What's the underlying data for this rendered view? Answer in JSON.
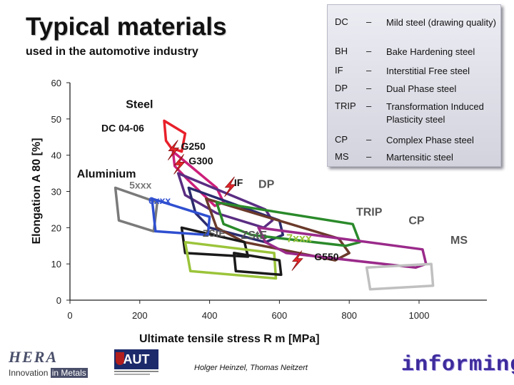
{
  "header": {
    "title": "Typical materials",
    "subtitle": "used in the automotive industry"
  },
  "legend": {
    "entries": [
      {
        "abbr": "DC",
        "dash": "–",
        "desc": "Mild steel (drawing quality)"
      },
      {
        "abbr": "BH",
        "dash": "–",
        "desc": "Bake Hardening steel"
      },
      {
        "abbr": "IF",
        "dash": "–",
        "desc": "Interstitial Free steel"
      },
      {
        "abbr": "DP",
        "dash": "–",
        "desc": "Dual Phase steel"
      },
      {
        "abbr": "TRIP",
        "dash": "–",
        "desc": "Transformation Induced Plasticity steel"
      },
      {
        "abbr": "CP",
        "dash": "–",
        "desc": "Complex Phase steel"
      },
      {
        "abbr": "MS",
        "dash": "–",
        "desc": "Martensitic steel"
      }
    ]
  },
  "chart_data": {
    "type": "scatter",
    "xlabel": "Ultimate tensile stress R m [MPa]",
    "ylabel": "Elongation A 80 [%]",
    "xlim": [
      0,
      1000
    ],
    "ylim": [
      0,
      60
    ],
    "xticks": [
      0,
      200,
      400,
      600,
      800,
      1000
    ],
    "yticks": [
      0,
      10,
      20,
      30,
      40,
      50,
      60
    ],
    "grid": false,
    "group_labels": [
      "Steel",
      "Aluminium"
    ],
    "regions": [
      {
        "name": "DC 04-06",
        "color": "#e8202a",
        "corners": [
          [
            270,
            49.5
          ],
          [
            330,
            46
          ],
          [
            320,
            41
          ],
          [
            290,
            42
          ],
          [
            275,
            44
          ]
        ]
      },
      {
        "name": "G250",
        "color": "#cc1f7a",
        "corners": [
          [
            295,
            41
          ],
          [
            420,
            31
          ],
          [
            440,
            27
          ],
          [
            415,
            26
          ],
          [
            340,
            33
          ],
          [
            300,
            37
          ]
        ]
      },
      {
        "name": "G300",
        "color": "#5a2d82",
        "corners": [
          [
            310,
            35
          ],
          [
            560,
            25
          ],
          [
            580,
            22
          ],
          [
            555,
            20
          ],
          [
            420,
            24
          ],
          [
            330,
            29
          ]
        ]
      },
      {
        "name": "IF",
        "color": "#2b2b6e",
        "corners": [
          [
            340,
            31
          ],
          [
            600,
            22
          ],
          [
            610,
            18
          ],
          [
            560,
            16
          ],
          [
            400,
            20
          ],
          [
            360,
            24
          ]
        ]
      },
      {
        "name": "DP",
        "color": "#6b3a2a",
        "corners": [
          [
            390,
            28
          ],
          [
            770,
            17
          ],
          [
            800,
            13
          ],
          [
            760,
            11
          ],
          [
            500,
            16
          ],
          [
            420,
            20
          ]
        ]
      },
      {
        "name": "TRIP",
        "color": "#2a8a2a",
        "corners": [
          [
            420,
            27
          ],
          [
            810,
            21
          ],
          [
            830,
            16
          ],
          [
            790,
            15
          ],
          [
            520,
            18
          ],
          [
            440,
            21
          ]
        ]
      },
      {
        "name": "CP",
        "color": "#9a2a8a",
        "corners": [
          [
            540,
            20
          ],
          [
            1010,
            14
          ],
          [
            1020,
            10
          ],
          [
            990,
            9
          ],
          [
            620,
            13
          ],
          [
            560,
            16
          ]
        ]
      },
      {
        "name": "MS",
        "color": "#c0c0c0",
        "corners": [
          [
            850,
            9
          ],
          [
            1035,
            10
          ],
          [
            1040,
            4
          ],
          [
            860,
            3
          ]
        ]
      },
      {
        "name": "ZStE",
        "color": "#1a1a1a",
        "corners": [
          [
            320,
            20
          ],
          [
            500,
            16
          ],
          [
            510,
            12
          ],
          [
            330,
            13
          ]
        ]
      },
      {
        "name": "5xxx",
        "color": "#7a7a7a",
        "corners": [
          [
            130,
            31
          ],
          [
            250,
            27
          ],
          [
            240,
            19
          ],
          [
            140,
            22
          ]
        ]
      },
      {
        "name": "6xxx",
        "color": "#2f4fd0",
        "corners": [
          [
            235,
            28
          ],
          [
            400,
            23
          ],
          [
            395,
            18
          ],
          [
            245,
            19
          ]
        ]
      },
      {
        "name": "7xxx",
        "color": "#9bc43a",
        "corners": [
          [
            330,
            16
          ],
          [
            585,
            13
          ],
          [
            590,
            6
          ],
          [
            345,
            8
          ]
        ]
      },
      {
        "name": "G550",
        "color": "#1a1a1a",
        "corners": [
          [
            470,
            13
          ],
          [
            600,
            11
          ],
          [
            605,
            7
          ],
          [
            475,
            8
          ]
        ]
      }
    ],
    "labels": [
      {
        "text": "Steel",
        "x": 160,
        "y": 53,
        "color": "#111",
        "size": 16
      },
      {
        "text": "DC 04-06",
        "x": 90,
        "y": 46.5,
        "color": "#111",
        "size": 14
      },
      {
        "text": "ZStE",
        "x": 380,
        "y": 17.5,
        "color": "#555",
        "size": 14
      },
      {
        "text": "G250",
        "x": 318,
        "y": 41.5,
        "color": "#111",
        "size": 14
      },
      {
        "text": "G300",
        "x": 340,
        "y": 37.5,
        "color": "#111",
        "size": 14
      },
      {
        "text": "Aluminium",
        "x": 20,
        "y": 33.8,
        "color": "#111",
        "size": 16
      },
      {
        "text": "5xxx",
        "x": 170,
        "y": 30.8,
        "color": "#777",
        "size": 14
      },
      {
        "text": "IF",
        "x": 470,
        "y": 31.5,
        "color": "#111",
        "size": 14
      },
      {
        "text": "DP",
        "x": 540,
        "y": 31,
        "color": "#555",
        "size": 16
      },
      {
        "text": "6xxx",
        "x": 225,
        "y": 26.6,
        "color": "#2f4fd0",
        "size": 14
      },
      {
        "text": "TRIP",
        "x": 820,
        "y": 23.3,
        "color": "#555",
        "size": 16
      },
      {
        "text": "CP",
        "x": 970,
        "y": 21,
        "color": "#555",
        "size": 16
      },
      {
        "text": "ZStE",
        "x": 490,
        "y": 16.9,
        "color": "#555",
        "size": 16
      },
      {
        "text": "7xxx",
        "x": 620,
        "y": 16,
        "color": "#9bc43a",
        "size": 16
      },
      {
        "text": "MS",
        "x": 1090,
        "y": 15.5,
        "color": "#555",
        "size": 16
      },
      {
        "text": "G550",
        "x": 700,
        "y": 11,
        "color": "#111",
        "size": 14
      }
    ],
    "markers": [
      {
        "name": "lightning",
        "x": 295,
        "y": 41.4
      },
      {
        "name": "lightning",
        "x": 312,
        "y": 37.5
      },
      {
        "name": "lightning",
        "x": 457,
        "y": 31.3
      },
      {
        "name": "lightning",
        "x": 650,
        "y": 10.9
      }
    ]
  },
  "footer": {
    "left_logo_big": "HERA",
    "left_logo_small_1": "Innovation",
    "left_logo_small_2": "in Metals",
    "middle_logo": "AUT",
    "authors": "Holger Heinzel, Thomas Neitzert",
    "right_logo": "informing"
  }
}
